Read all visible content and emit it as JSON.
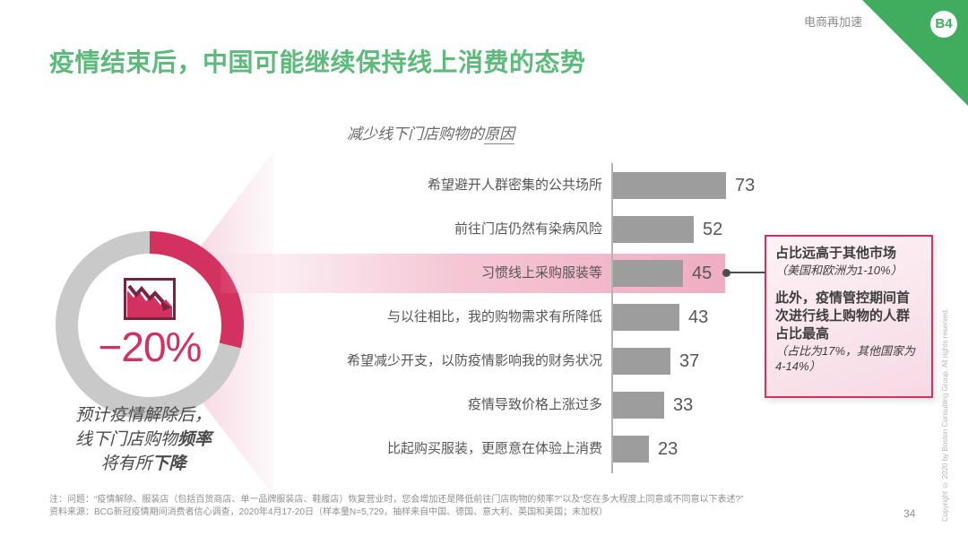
{
  "theme": {
    "green": "#5CBB7B",
    "ribbon_green": "#3FAC5E",
    "crimson": "#D4325E",
    "bar_gray": "#9D9D9D",
    "highlight_band_pink": "#EFADC2",
    "icon_maroon": "#7B2240"
  },
  "header": {
    "tag": "电商再加速",
    "badge": "B4",
    "title": "疫情结束后，中国可能继续保持线上消费的态势"
  },
  "chart": {
    "title_pre": "减少线下门店购物的",
    "title_underlined": "原因"
  },
  "left_panel": {
    "donut_value": "−20%",
    "caption": [
      {
        "pre": "预计疫情解除后，",
        "bold": ""
      },
      {
        "pre": "线下门店购物",
        "bold": "频率"
      },
      {
        "pre": "将有所",
        "bold": "下降"
      }
    ]
  },
  "chart_data": [
    {
      "type": "donut",
      "value_label": "−20%",
      "highlight_fraction": 0.29,
      "caption": "预计疫情解除后，线下门店购物频率将有所下降"
    },
    {
      "type": "bar",
      "orientation": "horizontal",
      "title": "减少线下门店购物的原因",
      "categories": [
        "希望避开人群密集的公共场所",
        "前往门店仍然有染病风险",
        "习惯线上采购服装等",
        "与以往相比，我的购物需求有所降低",
        "希望减少开支，以防疫情影响我的财务状况",
        "疫情导致价格上涨过多",
        "比起购买服装，更愿意在体验上消费"
      ],
      "values": [
        73,
        52,
        45,
        43,
        37,
        33,
        23
      ],
      "highlight_index": 2,
      "xlim": [
        0,
        80
      ],
      "legend": false,
      "grid": false
    }
  ],
  "callout": {
    "para1_bold": "占比远高于其他市场",
    "para1_note": "（美国和欧洲为1-10%）",
    "para2_bold": "此外，疫情管控期间首次进行线上购物的人群占比最高",
    "para2_note": "（占比为17%，其他国家为4-14%）"
  },
  "footer": {
    "notes": [
      "注：问题：“疫情解除、服装店（包括百货商店、单一品牌服装店、鞋履店）恢复营业时，您会增加还是降低前往门店购物的频率?”以及“您在多大程度上同意或不同意以下表述?”",
      "资料来源：BCG新冠疫情期间消费者信心调查，2020年4月17-20日（样本量N=5,729，抽样来自中国、德国、意大利、英国和美国；未加权）"
    ],
    "page_number": "34",
    "copyright": "Copyright © 2020 by Boston Consulting Group. All rights reserved."
  }
}
